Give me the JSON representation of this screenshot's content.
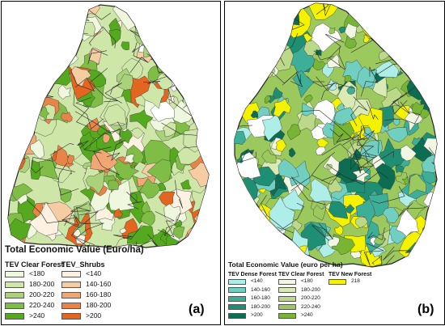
{
  "panel_a": {
    "label": "(a)",
    "legend_title": "Total Economic Value (Euro/ha)",
    "columns": [
      {
        "heading": "TEV Clear Forest",
        "items": [
          {
            "label": "<180",
            "color": "#eff7df"
          },
          {
            "label": "180-200",
            "color": "#cfe6a9"
          },
          {
            "label": "200-220",
            "color": "#a9d27a"
          },
          {
            "label": "220-240",
            "color": "#7fbd47"
          },
          {
            "label": ">240",
            "color": "#55a91e"
          }
        ]
      },
      {
        "heading": "TEV_Shrubs",
        "items": [
          {
            "label": "<140",
            "color": "#fdf1e1"
          },
          {
            "label": "140-160",
            "color": "#f6cda2"
          },
          {
            "label": "160-180",
            "color": "#f0a774"
          },
          {
            "label": "180-200",
            "color": "#e88447"
          },
          {
            "label": ">200",
            "color": "#e2661f"
          }
        ]
      }
    ]
  },
  "panel_b": {
    "label": "(b)",
    "legend_title": "Total Economic Value (euro per ha)",
    "columns": [
      {
        "heading": "TEV Dense Forest",
        "items": [
          {
            "label": "<140",
            "color": "#aeeee8"
          },
          {
            "label": "140-160",
            "color": "#70cfc0"
          },
          {
            "label": "160-180",
            "color": "#3daf98"
          },
          {
            "label": "180-200",
            "color": "#1f8f73"
          },
          {
            "label": ">200",
            "color": "#0d6d52"
          }
        ]
      },
      {
        "heading": "TEV Clear Forest",
        "items": [
          {
            "label": "<180",
            "color": "#f2f7e4"
          },
          {
            "label": "180-200",
            "color": "#d9eab5"
          },
          {
            "label": "200-220",
            "color": "#bcd98a"
          },
          {
            "label": "220-240",
            "color": "#9cc95e"
          },
          {
            "label": ">240",
            "color": "#78b534"
          }
        ]
      },
      {
        "heading": "TEV New Forest",
        "items": [
          {
            "label": "218",
            "color": "#f5f200"
          }
        ]
      }
    ]
  }
}
